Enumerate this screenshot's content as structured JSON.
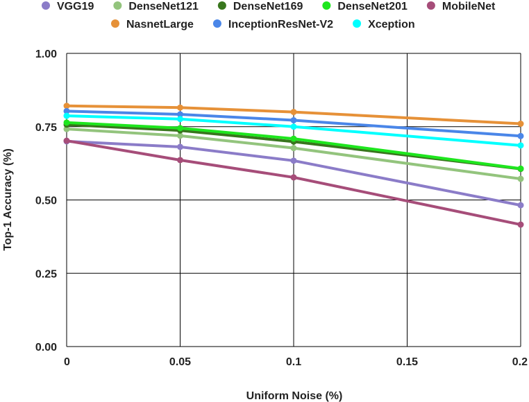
{
  "chart_data": {
    "type": "line",
    "title": "",
    "xlabel": "Uniform Noise (%)",
    "ylabel": "Top-1 Accuracy  (%)",
    "x": [
      0,
      0.05,
      0.1,
      0.2
    ],
    "x_ticks": [
      "0",
      "0.05",
      "0.1",
      "0.15",
      "0.2"
    ],
    "x_tick_values": [
      0,
      0.05,
      0.1,
      0.15,
      0.2
    ],
    "xlim": [
      0,
      0.2
    ],
    "y_ticks": [
      "1.00",
      "0.75",
      "0.50",
      "0.25",
      "0.00"
    ],
    "y_tick_values": [
      1.0,
      0.75,
      0.5,
      0.25,
      0.0
    ],
    "ylim": [
      0,
      1.0
    ],
    "grid": true,
    "legend_position": "top",
    "series": [
      {
        "name": "VGG19",
        "color": "#8b7cc8",
        "values": [
          0.7,
          0.681,
          0.634,
          0.482
        ]
      },
      {
        "name": "DenseNet121",
        "color": "#93c47d",
        "values": [
          0.742,
          0.719,
          0.677,
          0.572
        ]
      },
      {
        "name": "DenseNet169",
        "color": "#38761d",
        "values": [
          0.757,
          0.737,
          0.699,
          0.606
        ]
      },
      {
        "name": "DenseNet201",
        "color": "#1ee61e",
        "values": [
          0.764,
          0.745,
          0.709,
          0.607
        ]
      },
      {
        "name": "MobileNet",
        "color": "#a64d79",
        "values": [
          0.702,
          0.636,
          0.577,
          0.416
        ]
      },
      {
        "name": "NasnetLarge",
        "color": "#e69138",
        "values": [
          0.821,
          0.815,
          0.8,
          0.76
        ]
      },
      {
        "name": "InceptionResNet-V2",
        "color": "#4a86e8",
        "values": [
          0.803,
          0.792,
          0.772,
          0.718
        ]
      },
      {
        "name": "Xception",
        "color": "#00ffff",
        "values": [
          0.787,
          0.776,
          0.75,
          0.686
        ]
      }
    ]
  }
}
